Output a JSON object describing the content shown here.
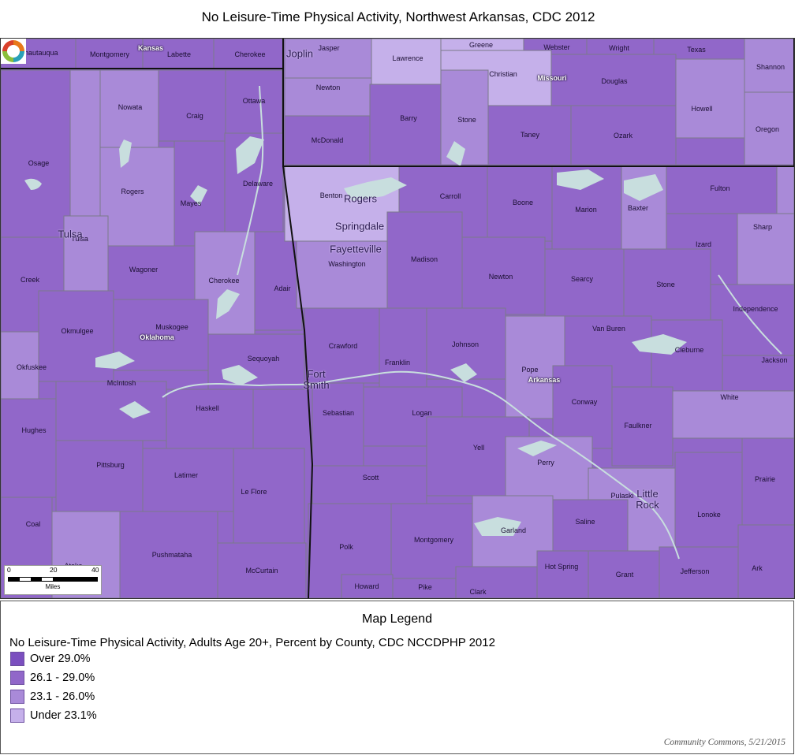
{
  "title": "No Leisure-Time Physical Activity, Northwest Arkansas, CDC 2012",
  "colors": {
    "over_29": "#7b4fbf",
    "c26_29": "#9167c9",
    "c23_26": "#a98ad8",
    "under_23": "#c5b0ea",
    "water": "#c8dede",
    "border": "#7a7a8a",
    "state_line": "#111111"
  },
  "map": {
    "states": [
      {
        "name": "Kansas"
      },
      {
        "name": "Missouri"
      },
      {
        "name": "Oklahoma"
      },
      {
        "name": "Arkansas"
      }
    ],
    "counties": [
      {
        "name": "Chautauqua"
      },
      {
        "name": "Montgomery"
      },
      {
        "name": "Labette"
      },
      {
        "name": "Cherokee"
      },
      {
        "name": "Jasper"
      },
      {
        "name": "Lawrence"
      },
      {
        "name": "Greene"
      },
      {
        "name": "Webster"
      },
      {
        "name": "Wright"
      },
      {
        "name": "Texas"
      },
      {
        "name": "Shannon"
      },
      {
        "name": "Newton"
      },
      {
        "name": "Christian"
      },
      {
        "name": "Douglas"
      },
      {
        "name": "Howell"
      },
      {
        "name": "Oregon"
      },
      {
        "name": "Barry"
      },
      {
        "name": "Stone"
      },
      {
        "name": "McDonald"
      },
      {
        "name": "Taney"
      },
      {
        "name": "Ozark"
      },
      {
        "name": "Nowata"
      },
      {
        "name": "Craig"
      },
      {
        "name": "Ottawa"
      },
      {
        "name": "Osage"
      },
      {
        "name": "Rogers"
      },
      {
        "name": "Delaware"
      },
      {
        "name": "Mayes"
      },
      {
        "name": "Tulsa"
      },
      {
        "name": "Wagoner"
      },
      {
        "name": "Cherokee"
      },
      {
        "name": "Adair"
      },
      {
        "name": "Creek"
      },
      {
        "name": "Okmulgee"
      },
      {
        "name": "Muskogee"
      },
      {
        "name": "Okfuskee"
      },
      {
        "name": "McIntosh"
      },
      {
        "name": "Sequoyah"
      },
      {
        "name": "Haskell"
      },
      {
        "name": "Hughes"
      },
      {
        "name": "Pittsburg"
      },
      {
        "name": "Latimer"
      },
      {
        "name": "Le Flore"
      },
      {
        "name": "Coal"
      },
      {
        "name": "Pushmataha"
      },
      {
        "name": "McCurtain"
      },
      {
        "name": "Atoka"
      },
      {
        "name": "Benton"
      },
      {
        "name": "Carroll"
      },
      {
        "name": "Boone"
      },
      {
        "name": "Marion"
      },
      {
        "name": "Baxter"
      },
      {
        "name": "Fulton"
      },
      {
        "name": "Washington"
      },
      {
        "name": "Madison"
      },
      {
        "name": "Newton"
      },
      {
        "name": "Searcy"
      },
      {
        "name": "Izard"
      },
      {
        "name": "Sharp"
      },
      {
        "name": "Stone"
      },
      {
        "name": "Independence"
      },
      {
        "name": "Crawford"
      },
      {
        "name": "Franklin"
      },
      {
        "name": "Johnson"
      },
      {
        "name": "Van Buren"
      },
      {
        "name": "Cleburne"
      },
      {
        "name": "Jackson"
      },
      {
        "name": "Pope"
      },
      {
        "name": "Sebastian"
      },
      {
        "name": "Logan"
      },
      {
        "name": "Conway"
      },
      {
        "name": "White"
      },
      {
        "name": "Faulkner"
      },
      {
        "name": "Yell"
      },
      {
        "name": "Perry"
      },
      {
        "name": "Scott"
      },
      {
        "name": "Prairie"
      },
      {
        "name": "Pulaski"
      },
      {
        "name": "Lonoke"
      },
      {
        "name": "Saline"
      },
      {
        "name": "Garland"
      },
      {
        "name": "Polk"
      },
      {
        "name": "Montgomery"
      },
      {
        "name": "Hot Spring"
      },
      {
        "name": "Grant"
      },
      {
        "name": "Jefferson"
      },
      {
        "name": "Ark"
      },
      {
        "name": "Howard"
      },
      {
        "name": "Pike"
      },
      {
        "name": "Clark"
      }
    ],
    "cities": [
      {
        "name": "Joplin"
      },
      {
        "name": "Tulsa"
      },
      {
        "name": "Rogers"
      },
      {
        "name": "Springdale"
      },
      {
        "name": "Fayetteville"
      },
      {
        "name": "Fort Smith"
      },
      {
        "name": "Little Rock"
      }
    ],
    "scale_bar": {
      "ticks": [
        "0",
        "20",
        "40"
      ],
      "unit": "Miles"
    },
    "logo": "community-commons-logo"
  },
  "legend": {
    "title": "Map Legend",
    "subtitle": "No Leisure-Time Physical Activity, Adults Age 20+, Percent by County, CDC NCCDPHP 2012",
    "items": [
      {
        "label": "Over 29.0%",
        "color": "#7b4fbf"
      },
      {
        "label": "26.1 - 29.0%",
        "color": "#9167c9"
      },
      {
        "label": "23.1 - 26.0%",
        "color": "#a98ad8"
      },
      {
        "label": "Under 23.1%",
        "color": "#c5b0ea"
      }
    ]
  },
  "credit": "Community Commons, 5/21/2015"
}
